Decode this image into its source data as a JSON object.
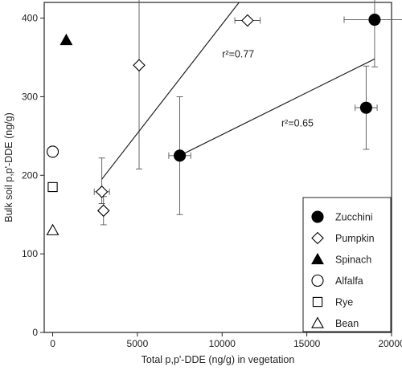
{
  "chart_data": {
    "type": "scatter",
    "xlabel": "Total p,p'-DDE (ng/g) in vegetation",
    "ylabel": "Bulk soil p,p'-DDE (ng/g)",
    "xlim": [
      -500,
      20000
    ],
    "ylim": [
      0,
      420
    ],
    "x_ticks": [
      0,
      5000,
      10000,
      15000,
      20000
    ],
    "y_ticks": [
      0,
      100,
      200,
      300,
      400
    ],
    "grid": false,
    "legend_position": "bottom-right",
    "series": [
      {
        "name": "Zucchini",
        "marker": "circle-filled",
        "points": [
          {
            "x": 7500,
            "y": 225,
            "xerr": 650,
            "yerr_low": 75,
            "yerr_high": 75
          },
          {
            "x": 18500,
            "y": 286,
            "xerr": 650,
            "yerr_low": 53,
            "yerr_high": 53
          },
          {
            "x": 19000,
            "y": 398,
            "xerr": 1800,
            "yerr_low": 60,
            "yerr_high": 60
          }
        ]
      },
      {
        "name": "Pumpkin",
        "marker": "diamond-open",
        "points": [
          {
            "x": 2900,
            "y": 179,
            "xerr": 450,
            "yerr_low": 15,
            "yerr_high": 43
          },
          {
            "x": 3000,
            "y": 155,
            "xerr": 0,
            "yerr_low": 18,
            "yerr_high": 18
          },
          {
            "x": 5100,
            "y": 340,
            "xerr": 0,
            "yerr_low": 132,
            "yerr_high": 120
          },
          {
            "x": 11500,
            "y": 397,
            "xerr": 750,
            "yerr_low": 0,
            "yerr_high": 0
          }
        ]
      },
      {
        "name": "Spinach",
        "marker": "triangle-filled",
        "points": [
          {
            "x": 800,
            "y": 372
          }
        ]
      },
      {
        "name": "Alfalfa",
        "marker": "circle-open",
        "points": [
          {
            "x": 0,
            "y": 230
          }
        ]
      },
      {
        "name": "Rye",
        "marker": "square-open",
        "points": [
          {
            "x": 0,
            "y": 185
          }
        ]
      },
      {
        "name": "Bean",
        "marker": "triangle-open",
        "points": [
          {
            "x": 0,
            "y": 130
          }
        ]
      }
    ],
    "trendlines": [
      {
        "series": "Pumpkin",
        "x": [
          2900,
          11000
        ],
        "y": [
          195,
          420
        ],
        "label": "r²=0.77",
        "label_at": {
          "x": 10000,
          "y": 350
        }
      },
      {
        "series": "Zucchini",
        "x": [
          7500,
          19000
        ],
        "y": [
          225,
          348
        ],
        "label": "r²=0.65",
        "label_at": {
          "x": 13500,
          "y": 262
        }
      }
    ]
  }
}
